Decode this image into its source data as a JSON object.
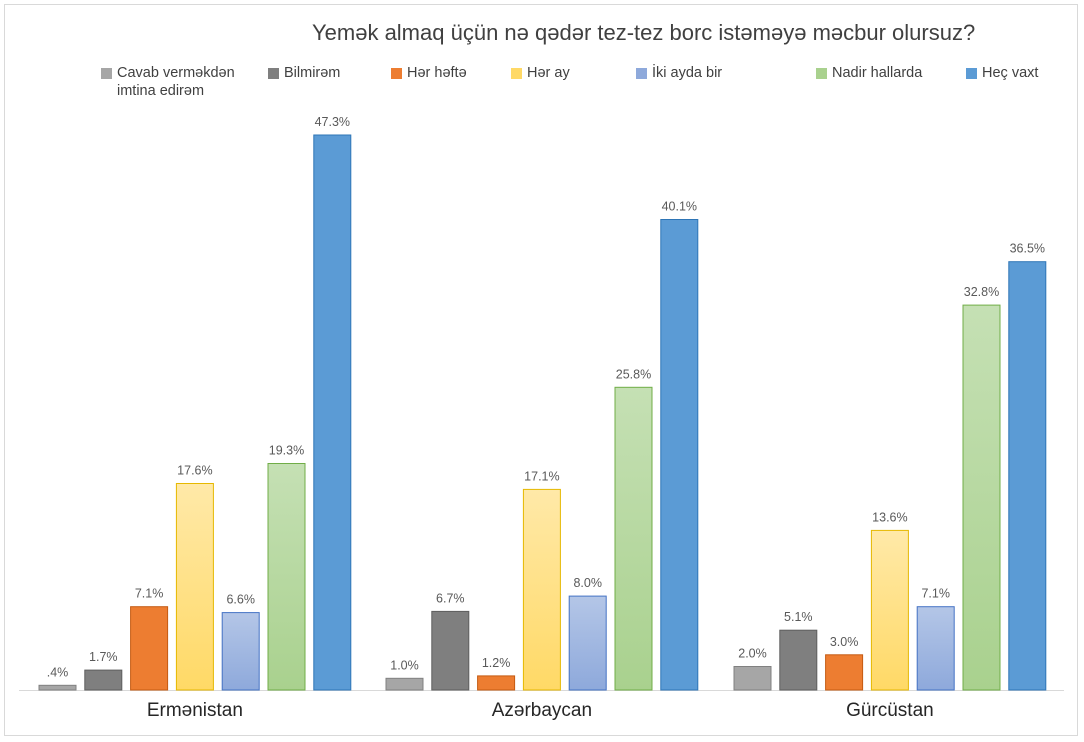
{
  "chart_data": {
    "type": "bar",
    "title": "Yemək almaq üçün nə qədər tez-tez borc istəməyə məcbur olursuz?",
    "categories": [
      "Ermənistan",
      "Azərbaycan",
      "Gürcüstan"
    ],
    "ylim": [
      0,
      50
    ],
    "grid": false,
    "legend_position": "top",
    "series": [
      {
        "name": "Cavab verməkdən imtina edirəm",
        "values": [
          0.4,
          1.0,
          2.0
        ],
        "labels": [
          ".4%",
          "1.0%",
          "2.0%"
        ],
        "color": "#a6a6a6",
        "color_dark": "#808080"
      },
      {
        "name": "Bilmirəm",
        "values": [
          1.7,
          6.7,
          5.1
        ],
        "labels": [
          "1.7%",
          "6.7%",
          "5.1%"
        ],
        "color": "#7f7f7f",
        "color_dark": "#5e5e5e"
      },
      {
        "name": "Hər həftə",
        "values": [
          7.1,
          1.2,
          3.0
        ],
        "labels": [
          "7.1%",
          "1.2%",
          "3.0%"
        ],
        "color": "#ed7d31",
        "color_dark": "#c55a11"
      },
      {
        "name": "Hər ay",
        "values": [
          17.6,
          17.1,
          13.6
        ],
        "labels": [
          "17.6%",
          "17.1%",
          "13.6%"
        ],
        "color": "#ffd966",
        "color_light": "#ffe9a8",
        "color_dark": "#e6b800"
      },
      {
        "name": "İki ayda bir",
        "values": [
          6.6,
          8.0,
          7.1
        ],
        "labels": [
          "6.6%",
          "8.0%",
          "7.1%"
        ],
        "color": "#8ea9db",
        "color_light": "#b4c6e7",
        "color_dark": "#4472c4"
      },
      {
        "name": "Nadir hallarda",
        "values": [
          19.3,
          25.8,
          32.8
        ],
        "labels": [
          "19.3%",
          "25.8%",
          "32.8%"
        ],
        "color": "#a9d18e",
        "color_light": "#c5e0b4",
        "color_dark": "#70ad47"
      },
      {
        "name": "Heç vaxt",
        "values": [
          47.3,
          40.1,
          36.5
        ],
        "labels": [
          "47.3%",
          "40.1%",
          "36.5%"
        ],
        "color": "#5b9bd5",
        "color_dark": "#2e75b6"
      }
    ]
  }
}
